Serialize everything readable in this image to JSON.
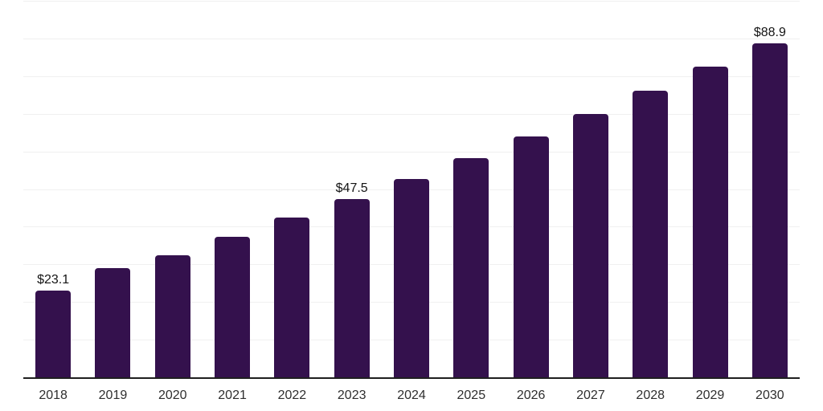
{
  "chart_data": {
    "type": "bar",
    "title": "",
    "xlabel": "",
    "ylabel": "",
    "categories": [
      "2018",
      "2019",
      "2020",
      "2021",
      "2022",
      "2023",
      "2024",
      "2025",
      "2026",
      "2027",
      "2028",
      "2029",
      "2030"
    ],
    "values": [
      23.1,
      29.0,
      32.5,
      37.4,
      42.5,
      47.5,
      52.7,
      58.3,
      64.0,
      70.0,
      76.2,
      82.6,
      88.9
    ],
    "data_labels": {
      "2018": "$23.1",
      "2023": "$47.5",
      "2030": "$88.9"
    },
    "ylim": [
      0,
      100
    ],
    "gridline_step": 10,
    "grid": "horizontal-only",
    "legend": "none",
    "colors": {
      "bar": "#34114d",
      "gridline": "#f0f0f0",
      "axis_line": "#1f1f1f",
      "tick_label": "#2e2e2e",
      "data_label": "#141414",
      "background": "#ffffff"
    }
  }
}
